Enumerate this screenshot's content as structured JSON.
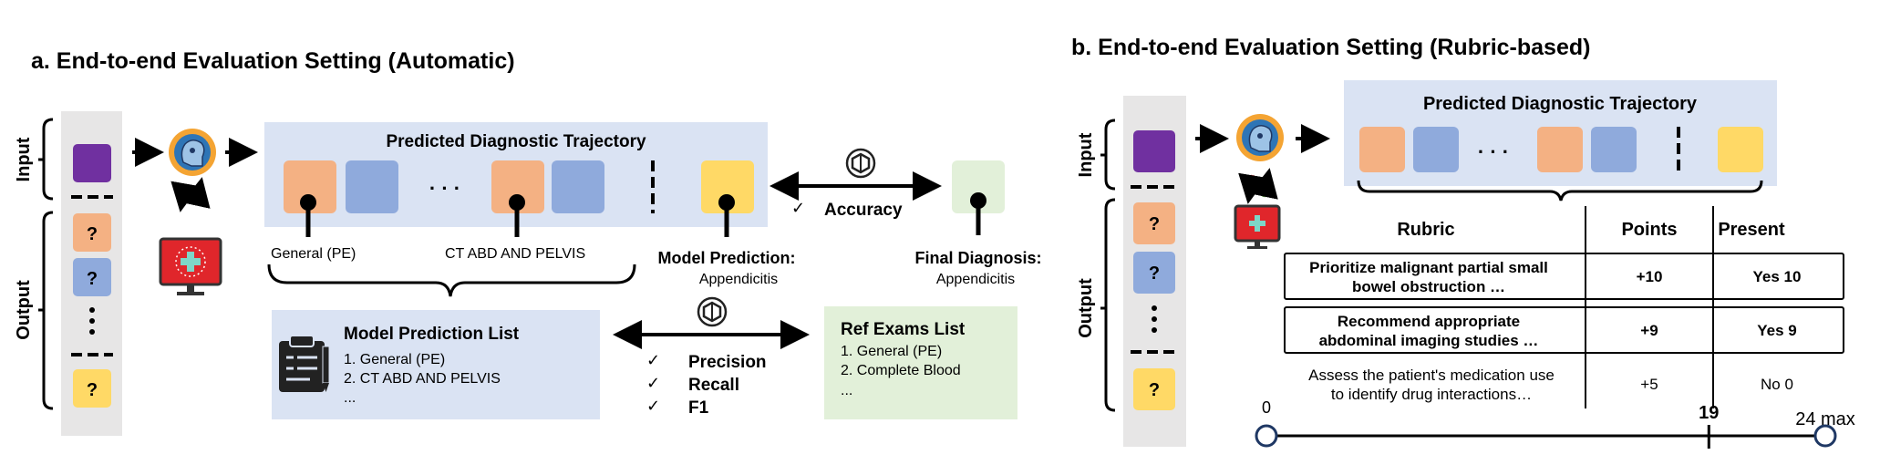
{
  "panel_a": {
    "title": "a. End-to-end Evaluation Setting (Automatic)",
    "input_label": "Input",
    "output_label": "Output",
    "question_mark": "?",
    "trajectory_title": "Predicted Diagnostic Trajectory",
    "ellipsis": "· · ·",
    "label_general": "General (PE)",
    "label_ct": "CT ABD AND PELVIS",
    "accuracy_check": "✓",
    "accuracy_label": "Accuracy",
    "model_prediction_label": "Model Prediction:",
    "model_prediction_value": "Appendicitis",
    "final_diagnosis_label": "Final Diagnosis:",
    "final_diagnosis_value": "Appendicitis",
    "model_list_title": "Model Prediction List",
    "model_list_items": [
      "1. General (PE)",
      "2. CT ABD AND PELVIS",
      "..."
    ],
    "metrics": [
      {
        "check": "✓",
        "label": "Precision"
      },
      {
        "check": "✓",
        "label": "Recall"
      },
      {
        "check": "✓",
        "label": "F1"
      }
    ],
    "ref_list_title": "Ref Exams List",
    "ref_list_items": [
      "1. General (PE)",
      "2. Complete Blood",
      "..."
    ]
  },
  "panel_b": {
    "title": "b. End-to-end Evaluation Setting (Rubric-based)",
    "input_label": "Input",
    "output_label": "Output",
    "question_mark": "?",
    "trajectory_title": "Predicted Diagnostic Trajectory",
    "ellipsis": "· · ·",
    "table_headers": [
      "Rubric",
      "Points",
      "Present"
    ],
    "rubric_rows": [
      {
        "rubric_line1": "Prioritize malignant partial small",
        "rubric_line2": "bowel obstruction …",
        "points": "+10",
        "present": "Yes 10"
      },
      {
        "rubric_line1": "Recommend appropriate",
        "rubric_line2": "abdominal imaging studies …",
        "points": "+9",
        "present": "Yes 9"
      },
      {
        "rubric_line1": "Assess the patient's medication use",
        "rubric_line2": "to identify drug interactions…",
        "points": "+5",
        "present": "No 0"
      }
    ],
    "scale_min": "0",
    "scale_value": "19",
    "scale_max": "24 max",
    "scale": {
      "min": 0,
      "value": 19,
      "max": 24
    }
  },
  "colors": {
    "input_purple": "#7030a0",
    "exam_orange": "#f4b183",
    "lab_blue": "#8faadc",
    "diagnosis_yellow": "#ffd966",
    "trajectory_bg": "#dae3f3",
    "ref_bg": "#e2f0d9",
    "sidebar_bg": "#e7e6e6",
    "monitor_red": "#e0262b"
  }
}
